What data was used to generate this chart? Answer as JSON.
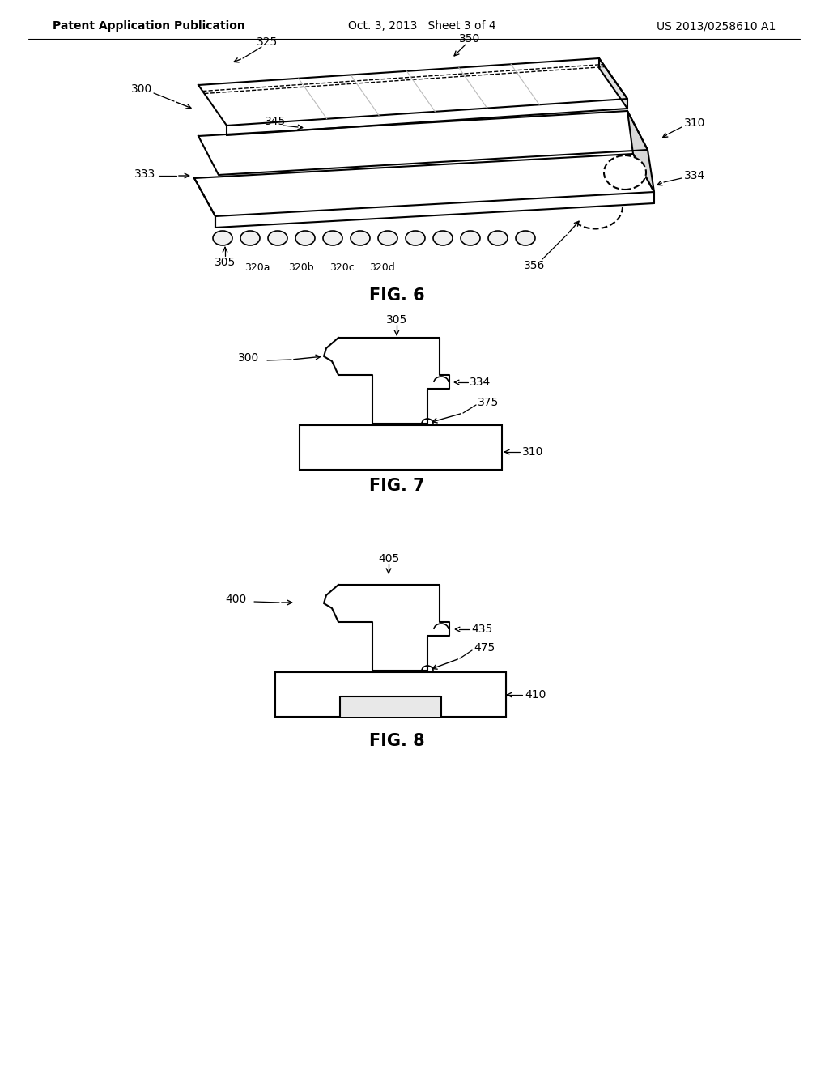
{
  "bg_color": "#ffffff",
  "line_color": "#000000",
  "header_left": "Patent Application Publication",
  "header_mid": "Oct. 3, 2013   Sheet 3 of 4",
  "header_right": "US 2013/0258610 A1",
  "fig6_label": "FIG. 6",
  "fig7_label": "FIG. 7",
  "fig8_label": "FIG. 8"
}
